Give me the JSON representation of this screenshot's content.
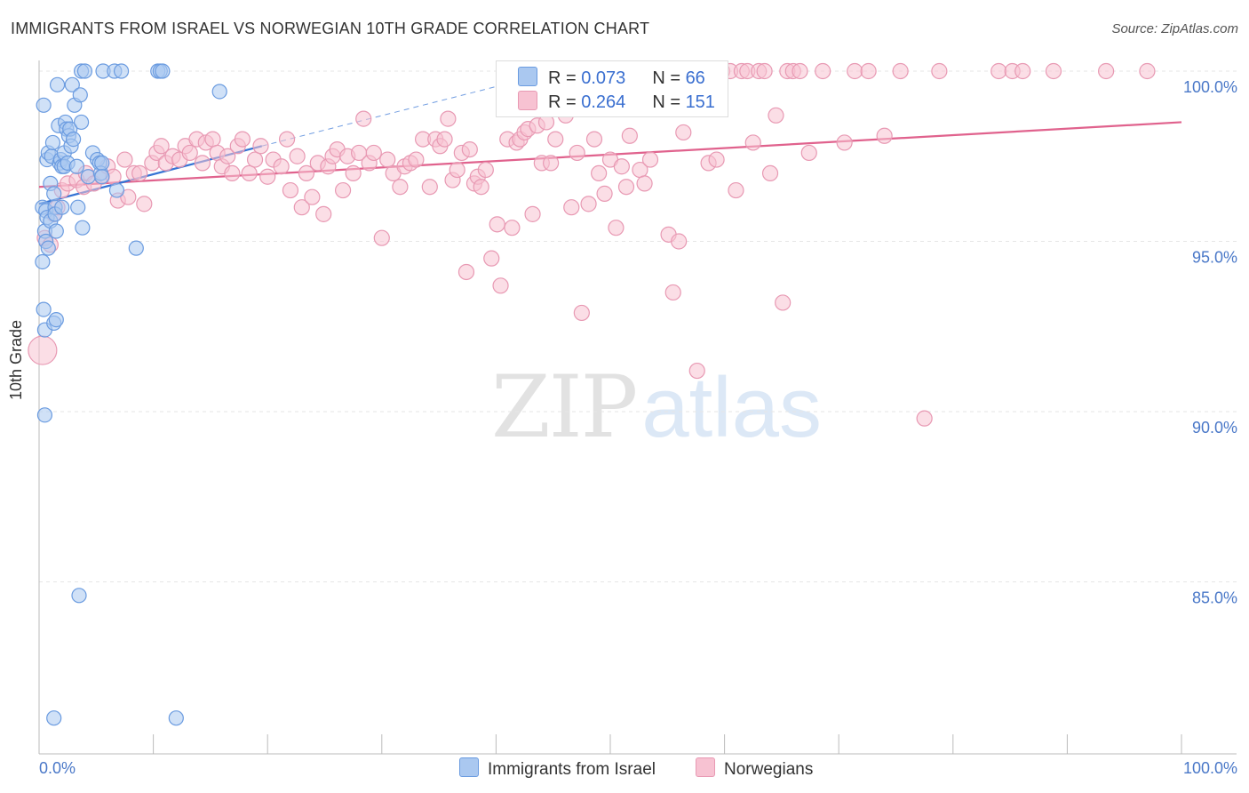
{
  "header": {
    "title": "IMMIGRANTS FROM ISRAEL VS NORWEGIAN 10TH GRADE CORRELATION CHART",
    "source": "Source: ZipAtlas.com"
  },
  "watermark": {
    "zip": "ZIP",
    "atlas": "atlas"
  },
  "legend": {
    "israel": {
      "r_label": "R = ",
      "r_value": "0.073",
      "n_label": "N = ",
      "n_value": "66"
    },
    "norwegian": {
      "r_label": "R = ",
      "r_value": "0.264",
      "n_label": "N = ",
      "n_value": "151"
    }
  },
  "colors": {
    "israel_fill": "#aac8f0",
    "israel_stroke": "#6a9be0",
    "israel_line": "#3573d4",
    "norwegian_fill": "#f7c2d2",
    "norwegian_stroke": "#e899b3",
    "norwegian_line": "#e0628d",
    "tick_text": "#4a78c8",
    "grid": "#e6e6e6"
  },
  "chart_data": {
    "type": "scatter",
    "title": "IMMIGRANTS FROM ISRAEL VS NORWEGIAN 10TH GRADE CORRELATION CHART",
    "xlabel": "",
    "ylabel": "10th Grade",
    "xlim": [
      0,
      100
    ],
    "ylim": [
      80,
      100.5
    ],
    "x_tick_labels": [
      "0.0%",
      "100.0%"
    ],
    "y_ticks": [
      100,
      95,
      90,
      85
    ],
    "y_tick_labels": [
      "100.0%",
      "95.0%",
      "90.0%",
      "85.0%"
    ],
    "legend_position": "bottom-center",
    "series": [
      {
        "name": "Immigrants from Israel",
        "r": 0.073,
        "n": 66,
        "trend": {
          "x": [
            0,
            19.5
          ],
          "y": [
            96.1,
            97.8
          ]
        },
        "trend_extension": {
          "x": [
            19.5,
            43
          ],
          "y": [
            97.8,
            99.8
          ]
        },
        "points": [
          [
            0.3,
            96.0
          ],
          [
            0.3,
            94.4
          ],
          [
            0.4,
            99.0
          ],
          [
            0.4,
            93.0
          ],
          [
            0.5,
            92.4
          ],
          [
            0.5,
            89.9
          ],
          [
            0.5,
            95.3
          ],
          [
            0.6,
            95.0
          ],
          [
            0.6,
            95.9
          ],
          [
            0.7,
            97.4
          ],
          [
            0.7,
            95.7
          ],
          [
            0.8,
            94.8
          ],
          [
            0.8,
            97.6
          ],
          [
            1.0,
            96.7
          ],
          [
            1.0,
            95.6
          ],
          [
            1.1,
            97.5
          ],
          [
            1.2,
            97.9
          ],
          [
            1.3,
            92.6
          ],
          [
            1.3,
            96.4
          ],
          [
            1.3,
            81.0
          ],
          [
            1.4,
            96.0
          ],
          [
            1.4,
            95.8
          ],
          [
            1.5,
            92.7
          ],
          [
            1.5,
            95.3
          ],
          [
            1.6,
            99.6
          ],
          [
            1.7,
            98.4
          ],
          [
            1.8,
            97.3
          ],
          [
            1.9,
            97.4
          ],
          [
            2.0,
            97.2
          ],
          [
            2.0,
            96.0
          ],
          [
            2.2,
            97.6
          ],
          [
            2.2,
            97.2
          ],
          [
            2.3,
            98.5
          ],
          [
            2.4,
            98.3
          ],
          [
            2.5,
            97.3
          ],
          [
            2.6,
            98.1
          ],
          [
            2.7,
            98.3
          ],
          [
            2.8,
            97.8
          ],
          [
            2.9,
            99.6
          ],
          [
            3.0,
            98.0
          ],
          [
            3.1,
            99.0
          ],
          [
            3.3,
            97.2
          ],
          [
            3.4,
            96.0
          ],
          [
            3.5,
            84.6
          ],
          [
            3.6,
            99.3
          ],
          [
            3.7,
            98.5
          ],
          [
            3.7,
            100.0
          ],
          [
            3.8,
            95.4
          ],
          [
            4.0,
            100.0
          ],
          [
            4.3,
            96.9
          ],
          [
            4.7,
            97.6
          ],
          [
            5.1,
            97.4
          ],
          [
            5.3,
            97.3
          ],
          [
            5.4,
            97.0
          ],
          [
            5.5,
            97.3
          ],
          [
            5.5,
            96.9
          ],
          [
            5.6,
            100.0
          ],
          [
            6.6,
            100.0
          ],
          [
            6.8,
            96.5
          ],
          [
            7.2,
            100.0
          ],
          [
            8.5,
            94.8
          ],
          [
            10.4,
            100.0
          ],
          [
            10.6,
            100.0
          ],
          [
            10.8,
            100.0
          ],
          [
            12.0,
            81.0
          ],
          [
            15.8,
            99.4
          ]
        ]
      },
      {
        "name": "Norwegians",
        "r": 0.264,
        "n": 151,
        "trend": {
          "x": [
            0,
            100
          ],
          "y": [
            96.6,
            98.5
          ]
        },
        "points": [
          [
            0.3,
            91.8
          ],
          [
            0.5,
            95.1
          ],
          [
            1.0,
            94.9
          ],
          [
            1.3,
            95.8
          ],
          [
            1.6,
            96.0
          ],
          [
            2.0,
            96.5
          ],
          [
            2.5,
            96.7
          ],
          [
            3.3,
            96.8
          ],
          [
            3.9,
            96.6
          ],
          [
            4.1,
            97.0
          ],
          [
            4.8,
            96.7
          ],
          [
            5.5,
            96.9
          ],
          [
            6.0,
            97.2
          ],
          [
            6.5,
            96.9
          ],
          [
            6.9,
            96.2
          ],
          [
            7.5,
            97.4
          ],
          [
            7.8,
            96.3
          ],
          [
            8.3,
            97.0
          ],
          [
            8.8,
            97.0
          ],
          [
            9.2,
            96.1
          ],
          [
            9.9,
            97.3
          ],
          [
            10.3,
            97.6
          ],
          [
            10.7,
            97.8
          ],
          [
            11.1,
            97.3
          ],
          [
            11.7,
            97.5
          ],
          [
            12.3,
            97.4
          ],
          [
            12.8,
            97.8
          ],
          [
            13.2,
            97.6
          ],
          [
            13.8,
            98.0
          ],
          [
            14.3,
            97.3
          ],
          [
            14.6,
            97.9
          ],
          [
            15.2,
            98.0
          ],
          [
            15.6,
            97.6
          ],
          [
            16.0,
            97.2
          ],
          [
            16.5,
            97.5
          ],
          [
            16.9,
            97.0
          ],
          [
            17.4,
            97.8
          ],
          [
            17.8,
            98.0
          ],
          [
            18.4,
            97.0
          ],
          [
            18.9,
            97.4
          ],
          [
            19.4,
            97.8
          ],
          [
            20.0,
            96.9
          ],
          [
            20.5,
            97.4
          ],
          [
            21.2,
            97.2
          ],
          [
            21.7,
            98.0
          ],
          [
            22.0,
            96.5
          ],
          [
            22.6,
            97.5
          ],
          [
            23.0,
            96.0
          ],
          [
            23.4,
            97.0
          ],
          [
            23.9,
            96.3
          ],
          [
            24.4,
            97.3
          ],
          [
            24.9,
            95.8
          ],
          [
            25.3,
            97.2
          ],
          [
            25.7,
            97.5
          ],
          [
            26.1,
            97.7
          ],
          [
            26.6,
            96.5
          ],
          [
            27.0,
            97.5
          ],
          [
            27.5,
            97.0
          ],
          [
            28.0,
            97.6
          ],
          [
            28.4,
            98.6
          ],
          [
            28.9,
            97.3
          ],
          [
            29.3,
            97.6
          ],
          [
            30.0,
            95.1
          ],
          [
            30.5,
            97.4
          ],
          [
            31.0,
            97.0
          ],
          [
            31.6,
            96.6
          ],
          [
            32.0,
            97.2
          ],
          [
            32.5,
            97.3
          ],
          [
            33.0,
            97.4
          ],
          [
            33.6,
            98.0
          ],
          [
            34.2,
            96.6
          ],
          [
            34.7,
            98.0
          ],
          [
            35.1,
            97.8
          ],
          [
            35.5,
            98.0
          ],
          [
            35.8,
            98.6
          ],
          [
            36.2,
            96.8
          ],
          [
            36.6,
            97.1
          ],
          [
            37.0,
            97.6
          ],
          [
            37.4,
            94.1
          ],
          [
            37.7,
            97.7
          ],
          [
            38.1,
            96.7
          ],
          [
            38.4,
            96.9
          ],
          [
            38.7,
            96.6
          ],
          [
            39.1,
            97.1
          ],
          [
            39.6,
            94.5
          ],
          [
            40.1,
            95.5
          ],
          [
            40.4,
            93.7
          ],
          [
            41.0,
            98.0
          ],
          [
            41.4,
            95.4
          ],
          [
            41.8,
            97.9
          ],
          [
            42.1,
            98.0
          ],
          [
            42.5,
            98.2
          ],
          [
            42.8,
            98.3
          ],
          [
            43.2,
            95.8
          ],
          [
            43.6,
            98.4
          ],
          [
            44.0,
            97.3
          ],
          [
            44.4,
            98.5
          ],
          [
            44.8,
            97.3
          ],
          [
            45.2,
            98.0
          ],
          [
            45.7,
            99.2
          ],
          [
            46.1,
            98.7
          ],
          [
            46.6,
            96.0
          ],
          [
            47.1,
            97.6
          ],
          [
            47.5,
            92.9
          ],
          [
            48.1,
            96.1
          ],
          [
            48.6,
            98.0
          ],
          [
            49.0,
            97.0
          ],
          [
            49.5,
            96.4
          ],
          [
            50.0,
            97.4
          ],
          [
            50.5,
            95.4
          ],
          [
            51.0,
            97.2
          ],
          [
            51.4,
            96.6
          ],
          [
            51.7,
            98.1
          ],
          [
            52.2,
            99.1
          ],
          [
            52.6,
            97.1
          ],
          [
            53.0,
            96.7
          ],
          [
            53.5,
            97.4
          ],
          [
            54.2,
            100.0
          ],
          [
            55.1,
            95.2
          ],
          [
            55.5,
            93.5
          ],
          [
            56.0,
            95.0
          ],
          [
            56.4,
            98.2
          ],
          [
            56.9,
            100.0
          ],
          [
            57.1,
            100.0
          ],
          [
            57.6,
            91.2
          ],
          [
            58.2,
            100.0
          ],
          [
            58.6,
            97.3
          ],
          [
            59.3,
            97.4
          ],
          [
            59.8,
            100.0
          ],
          [
            60.5,
            100.0
          ],
          [
            61.0,
            96.5
          ],
          [
            61.5,
            100.0
          ],
          [
            62.0,
            100.0
          ],
          [
            62.5,
            97.9
          ],
          [
            63.0,
            100.0
          ],
          [
            63.5,
            100.0
          ],
          [
            64.0,
            97.0
          ],
          [
            64.5,
            98.7
          ],
          [
            65.1,
            93.2
          ],
          [
            65.5,
            100.0
          ],
          [
            66.0,
            100.0
          ],
          [
            66.6,
            100.0
          ],
          [
            67.4,
            97.6
          ],
          [
            68.6,
            100.0
          ],
          [
            70.5,
            97.9
          ],
          [
            71.4,
            100.0
          ],
          [
            72.6,
            100.0
          ],
          [
            74.0,
            98.1
          ],
          [
            75.4,
            100.0
          ],
          [
            77.5,
            89.8
          ],
          [
            78.8,
            100.0
          ],
          [
            84.0,
            100.0
          ],
          [
            85.2,
            100.0
          ],
          [
            86.1,
            100.0
          ],
          [
            88.8,
            100.0
          ],
          [
            93.4,
            100.0
          ],
          [
            97.0,
            100.0
          ]
        ]
      }
    ]
  }
}
